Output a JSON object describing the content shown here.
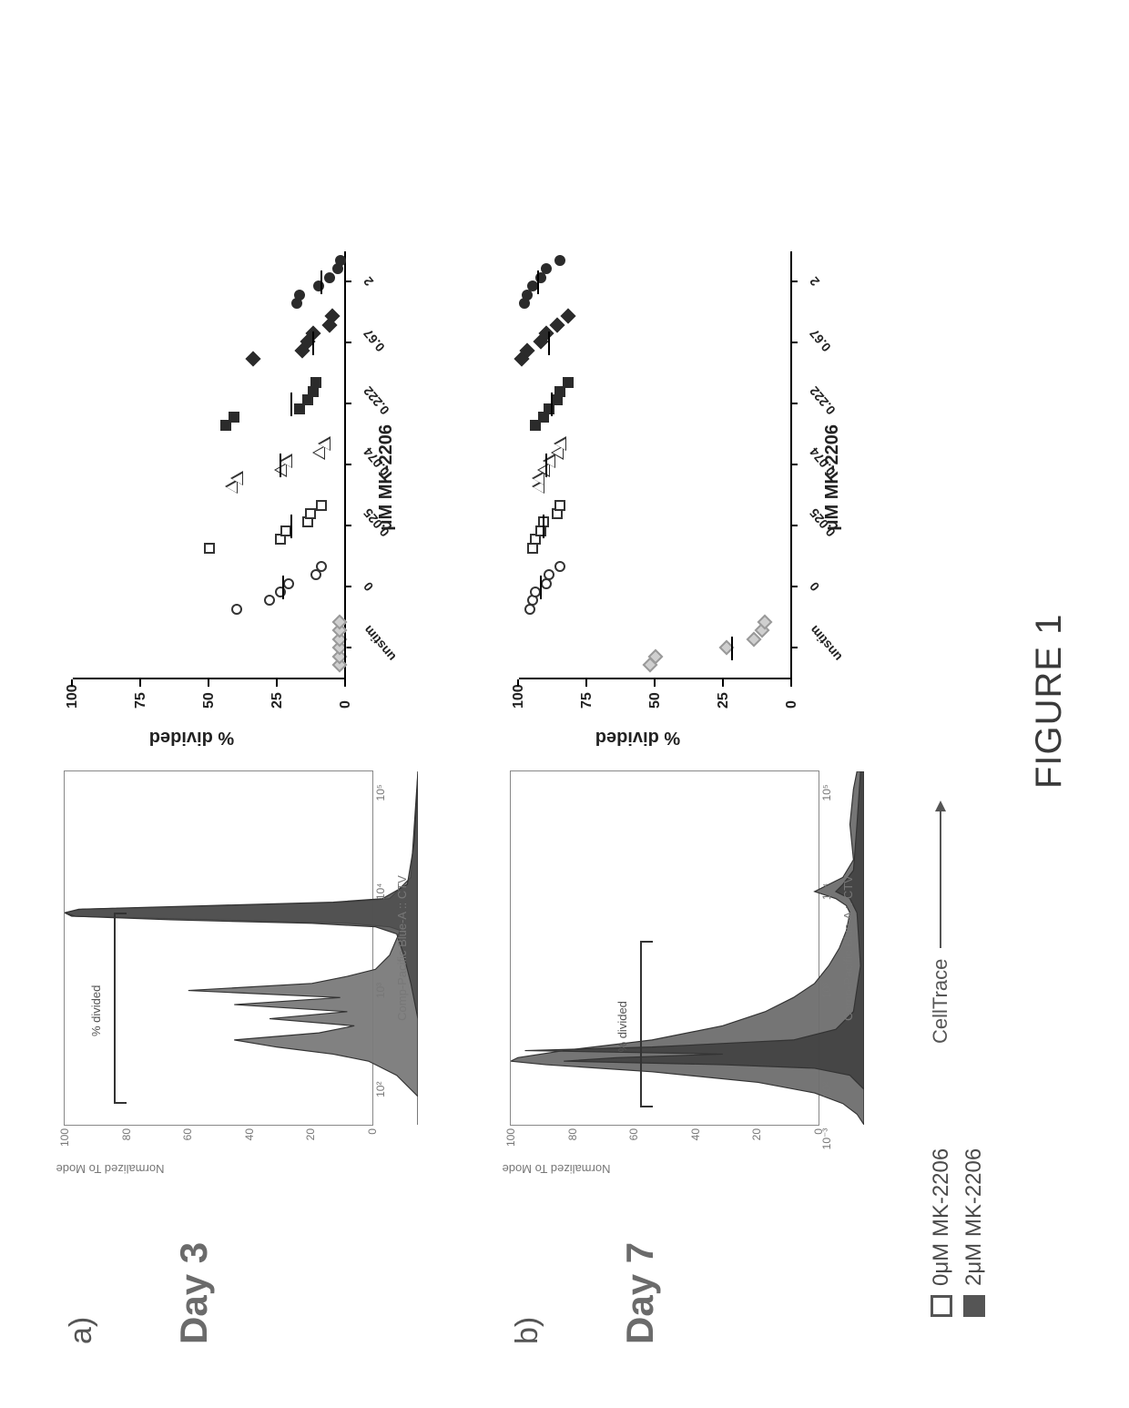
{
  "figure_title": "FIGURE 1",
  "panels": [
    {
      "id": "a",
      "label": "a)",
      "day": "Day 3"
    },
    {
      "id": "b",
      "label": "b)",
      "day": "Day 7"
    }
  ],
  "legend": {
    "items": [
      {
        "label": "0μM MK-2206",
        "fill": "#ffffff",
        "stroke": "#555555"
      },
      {
        "label": "2μM MK-2206",
        "fill": "#555555",
        "stroke": "#555555"
      }
    ]
  },
  "celltrace_label": "CellTrace",
  "histograms": {
    "ylabel": "Normalized To Mode",
    "xlabel": "Comp-Pacific Blue-A :: CTV",
    "yticks": [
      0,
      20,
      40,
      60,
      80,
      100
    ],
    "xticks_log": [
      2,
      3,
      4,
      5
    ],
    "xtick_labels": [
      "10²",
      "10³",
      "10⁴",
      "10⁵"
    ],
    "gate_label": "% divided",
    "day3": {
      "gate": {
        "left_pct": 6,
        "right_pct": 60,
        "top_pct": 16
      },
      "series": [
        {
          "name": "0uM",
          "fill": "#7a7a7a",
          "opacity": 0.95,
          "points": [
            [
              0,
              0
            ],
            [
              8,
              0
            ],
            [
              14,
              6
            ],
            [
              18,
              14
            ],
            [
              20,
              24
            ],
            [
              22,
              40
            ],
            [
              24,
              52
            ],
            [
              26,
              28
            ],
            [
              28,
              18
            ],
            [
              30,
              42
            ],
            [
              32,
              20
            ],
            [
              34,
              52
            ],
            [
              36,
              22
            ],
            [
              38,
              65
            ],
            [
              40,
              30
            ],
            [
              42,
              20
            ],
            [
              44,
              12
            ],
            [
              48,
              8
            ],
            [
              55,
              5
            ],
            [
              56,
              8
            ],
            [
              57,
              20
            ],
            [
              58,
              55
            ],
            [
              59,
              98
            ],
            [
              60,
              100
            ],
            [
              61,
              95
            ],
            [
              62,
              55
            ],
            [
              63,
              20
            ],
            [
              64,
              8
            ],
            [
              70,
              2
            ],
            [
              100,
              0
            ]
          ]
        },
        {
          "name": "2uM",
          "fill": "#4a4a4a",
          "opacity": 0.85,
          "points": [
            [
              0,
              0
            ],
            [
              30,
              0
            ],
            [
              40,
              2
            ],
            [
              48,
              4
            ],
            [
              54,
              6
            ],
            [
              56,
              12
            ],
            [
              57,
              30
            ],
            [
              58,
              70
            ],
            [
              59,
              97
            ],
            [
              60,
              100
            ],
            [
              61,
              96
            ],
            [
              62,
              60
            ],
            [
              63,
              24
            ],
            [
              64,
              10
            ],
            [
              68,
              3
            ],
            [
              80,
              1
            ],
            [
              100,
              0
            ]
          ]
        }
      ]
    },
    "day7": {
      "extra_left_tick": "10⁻³",
      "gate": {
        "left_pct": 5,
        "right_pct": 52,
        "top_pct": 42
      },
      "series": [
        {
          "name": "0uM",
          "fill": "#6e6e6e",
          "opacity": 0.95,
          "points": [
            [
              0,
              0
            ],
            [
              3,
              2
            ],
            [
              6,
              6
            ],
            [
              9,
              14
            ],
            [
              12,
              30
            ],
            [
              15,
              60
            ],
            [
              17,
              90
            ],
            [
              18,
              100
            ],
            [
              19,
              98
            ],
            [
              21,
              85
            ],
            [
              24,
              60
            ],
            [
              28,
              40
            ],
            [
              32,
              28
            ],
            [
              36,
              20
            ],
            [
              40,
              14
            ],
            [
              45,
              10
            ],
            [
              50,
              7
            ],
            [
              55,
              5
            ],
            [
              60,
              4
            ],
            [
              62,
              5
            ],
            [
              64,
              8
            ],
            [
              66,
              14
            ],
            [
              68,
              10
            ],
            [
              70,
              6
            ],
            [
              75,
              3
            ],
            [
              85,
              4
            ],
            [
              95,
              3
            ],
            [
              100,
              2
            ]
          ]
        },
        {
          "name": "2uM",
          "fill": "#3e3e3e",
          "opacity": 0.85,
          "points": [
            [
              0,
              0
            ],
            [
              10,
              0
            ],
            [
              14,
              4
            ],
            [
              16,
              14
            ],
            [
              17,
              40
            ],
            [
              18,
              85
            ],
            [
              19,
              70
            ],
            [
              20,
              40
            ],
            [
              21,
              96
            ],
            [
              22,
              60
            ],
            [
              24,
              20
            ],
            [
              27,
              8
            ],
            [
              32,
              3
            ],
            [
              45,
              1
            ],
            [
              60,
              2
            ],
            [
              64,
              4
            ],
            [
              66,
              8
            ],
            [
              68,
              6
            ],
            [
              72,
              3
            ],
            [
              85,
              2
            ],
            [
              100,
              1
            ]
          ]
        }
      ]
    }
  },
  "scatter": {
    "ylabel": "% divided",
    "xlabel": "μM MK-2206",
    "ylim": [
      0,
      100
    ],
    "yticks": [
      0,
      25,
      50,
      75,
      100
    ],
    "categories": [
      "unstim",
      "0",
      "0.025",
      "0.074",
      "0.222",
      "0.67",
      "2"
    ],
    "markers": {
      "unstim": {
        "shape": "diamond",
        "fill": "#cfcfcf",
        "stroke": "#999999"
      },
      "0": {
        "shape": "circle",
        "fill": "#ffffff",
        "stroke": "#333333"
      },
      "0.025": {
        "shape": "square",
        "fill": "#ffffff",
        "stroke": "#333333"
      },
      "0.074": {
        "shape": "triangle",
        "fill": "#ffffff",
        "stroke": "#333333"
      },
      "0.222": {
        "shape": "square",
        "fill": "#2b2b2b",
        "stroke": "#2b2b2b"
      },
      "0.67": {
        "shape": "diamond",
        "fill": "#2b2b2b",
        "stroke": "#2b2b2b"
      },
      "2": {
        "shape": "circle",
        "fill": "#2b2b2b",
        "stroke": "#2b2b2b"
      }
    },
    "marker_size": 12,
    "day3": {
      "data": {
        "unstim": [
          0.5,
          0.5,
          0.5,
          0.5,
          0.5,
          0.5
        ],
        "0": [
          40,
          28,
          24,
          21,
          11,
          9
        ],
        "0.025": [
          50,
          24,
          22,
          14,
          13,
          9
        ],
        "0.074": [
          42,
          40,
          24,
          22,
          10,
          8
        ],
        "0.222": [
          44,
          41,
          17,
          14,
          12,
          11
        ],
        "0.67": [
          32,
          14,
          12,
          10,
          4,
          3
        ],
        "2": [
          18,
          17,
          10,
          6,
          3,
          2
        ]
      },
      "medians": {
        "unstim": 0.5,
        "0": 23,
        "0.025": 20,
        "0.074": 24,
        "0.222": 20,
        "0.67": 12,
        "2": 9
      }
    },
    "day7": {
      "data": {
        "unstim": [
          50,
          48,
          22,
          12,
          9,
          8
        ],
        "0": [
          96,
          95,
          94,
          90,
          89,
          85
        ],
        "0.025": [
          95,
          94,
          92,
          91,
          86,
          85
        ],
        "0.074": [
          93,
          93,
          91,
          89,
          86,
          85
        ],
        "0.222": [
          94,
          91,
          89,
          86,
          85,
          82
        ],
        "0.67": [
          97,
          95,
          90,
          88,
          84,
          80
        ],
        "2": [
          98,
          97,
          95,
          92,
          90,
          85
        ]
      },
      "medians": {
        "unstim": 22,
        "0": 92,
        "0.025": 91,
        "0.074": 90,
        "0.222": 88,
        "0.67": 89,
        "2": 93
      }
    }
  },
  "colors": {
    "background": "#ffffff",
    "text_muted": "#6b6b6b",
    "axis": "#000000"
  }
}
